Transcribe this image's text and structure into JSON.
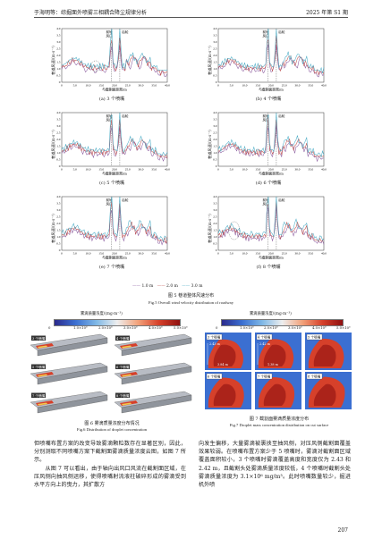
{
  "header": {
    "left": "于海明等：综掘面外喷雾三相耦合降尘规律分析",
    "right": "2025 年第 S1 期"
  },
  "figure5": {
    "ylabel": "巷道风速/(m·s⁻¹)",
    "xlabel": "与截割面距离/m",
    "annot_front": "前轮",
    "annot_front2": "风口",
    "annot_back": "后轮",
    "legend": [
      "1.0 m",
      "2.0 m",
      "3.0 m"
    ],
    "legend_prefix": "——",
    "caption_cn": "图 5  巷道整体风速分布",
    "caption_en": "Fig.5   Overall wind velocity distribution of roadway",
    "panels": [
      {
        "label": "(a) 3 个喷嘴"
      },
      {
        "label": "(b) 4 个喷嘴"
      },
      {
        "label": "(c) 5 个喷嘴"
      },
      {
        "label": "(d) 6 个喷嘴"
      },
      {
        "label": "(e) 7 个喷嘴"
      },
      {
        "label": "(f) 8 个喷嘴"
      }
    ],
    "yticks": [
      "0",
      "0.5",
      "1.0",
      "1.5",
      "2.0",
      "2.5",
      "3.0",
      "3.5",
      "4.0"
    ],
    "xticks": [
      "0",
      "5.0",
      "10.0",
      "15.0",
      "20.0",
      "25.0",
      "30.0",
      "35.0",
      "40.0"
    ]
  },
  "figure6": {
    "cbar_title": "雾滴质量浓度/(mg·m⁻³)",
    "cbar_ticks": [
      "0",
      "1.0×10⁶",
      "2.0×10⁶",
      "3.0×10⁶",
      "4.0×10⁶",
      "5.0×10⁶"
    ],
    "tags": [
      "3 个喷嘴",
      "4 个喷嘴",
      "5 个喷嘴",
      "6 个喷嘴",
      "7 个喷嘴",
      "8 个喷嘴"
    ],
    "caption_cn": "图 6   雾滴质量浓度分布情况",
    "caption_en": "Fig.6   Distribution of droplet concentration"
  },
  "figure7": {
    "cbar_title": "雾滴质量浓度/(mg·m⁻³)",
    "cbar_ticks": [
      "0",
      "1.0×10⁶",
      "2.0×10⁶",
      "3.0×10⁶",
      "4.0×10⁶",
      "5.0×10⁶"
    ],
    "tags": [
      "3 个喷嘴",
      "4 个喷嘴",
      "5 个喷嘴",
      "6 个喷嘴",
      "7 个喷嘴",
      "8 个喷嘴"
    ],
    "dims": [
      "2.43 m",
      "3.84 m",
      "2.42 m",
      "1.38 m"
    ],
    "caption_cn": "图 7   截割面雾滴质量浓度分布",
    "caption_en": "Fig.7   Droplet mass concentration distribution on cut surface"
  },
  "body": {
    "left": "但喷嘴布置方案的改变导致雾滴颗粒数存在显著区别，因此，分别测取不同喷嘴方案下截割面雾滴质量浓度云图，如图 7 所示。\n　　从图 7 可以看出，由于轴向出风口风流在截割面区域，在压风侧向抽风侧运移，使得喷嘴射流液柱破碎形成的雾滴受到水平方向上的曳力，其扩散方",
    "right": "向发生偏移，大量雾滴被裹挟至抽风侧，对压风侧截割面覆盖效果较弱。在喷嘴布置方案少于 5 喷嘴时，雾滴对截割面区域覆盖面积较小，3 个喷嘴时雾滴覆盖高度和宽度仅为 2.43 和 2.42 m，且截割头处雾滴质量浓度较低，4 个喷嘴时截割头处雾滴质量浓度为 3.1×10⁶ mg/m³。此时喷嘴数量较少，掘进机外喷"
  },
  "page_number": "207",
  "colors": {
    "series1": "#8a5a9e",
    "series2": "#c0504d",
    "series3": "#4bacc6"
  }
}
